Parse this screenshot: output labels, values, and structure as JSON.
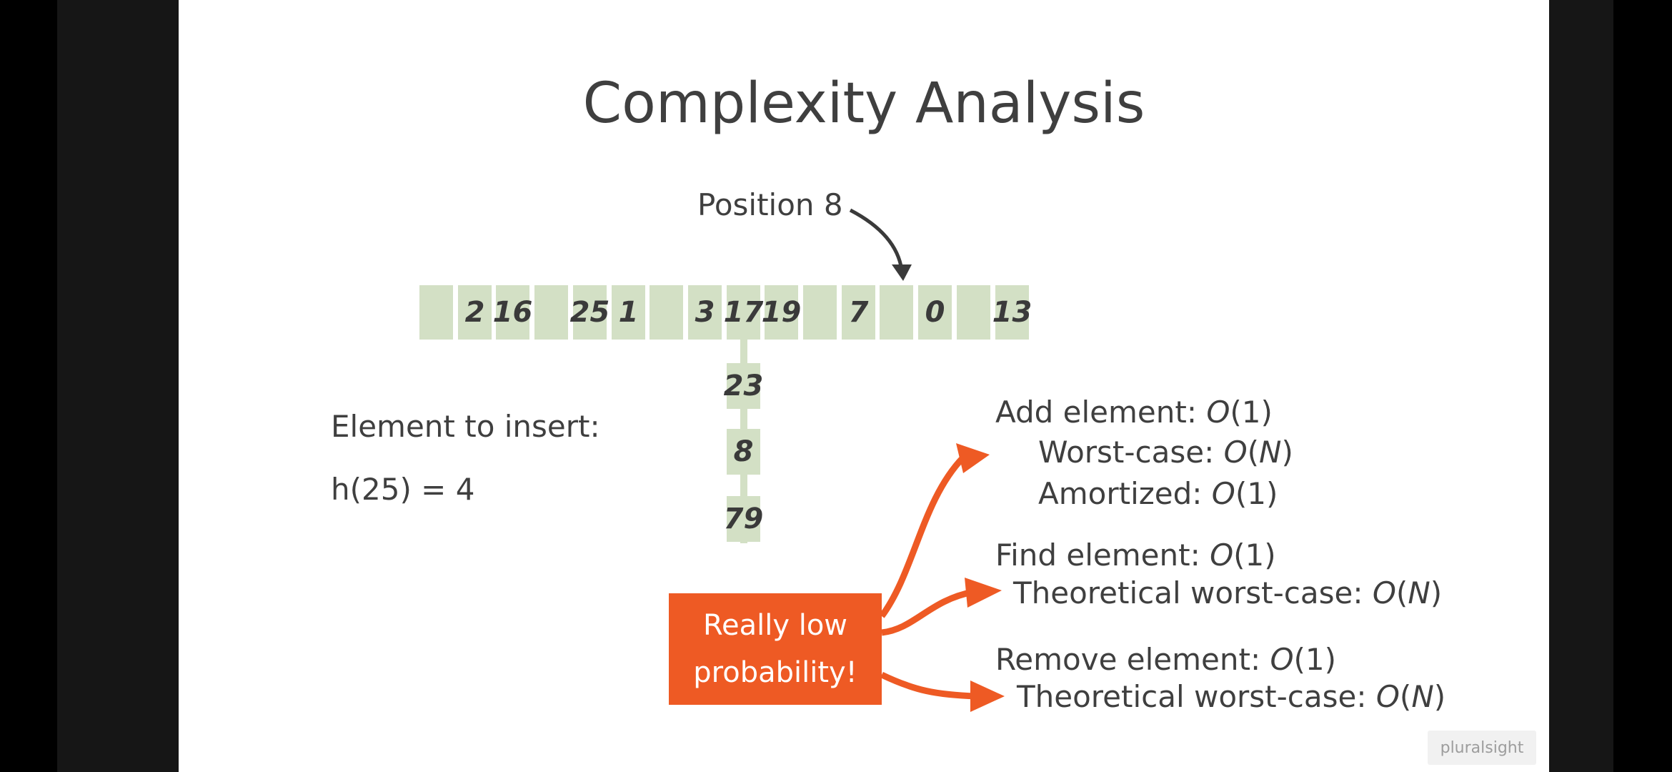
{
  "slide": {
    "title": "Complexity Analysis",
    "position_label": "Position 8",
    "array_cells": [
      "",
      "2",
      "16",
      "",
      "25",
      "1",
      "",
      "3",
      "17",
      "19",
      "",
      "7",
      "",
      "0",
      "",
      "13"
    ],
    "chain": [
      "23",
      "8",
      "79"
    ],
    "insert_label": "Element to insert:",
    "hash_expr": "h(25) = 4",
    "callout": {
      "line1": "Really low",
      "line2": "probability!"
    },
    "add": {
      "label": "Add element: ",
      "value": "O",
      "value_rest": "(1)"
    },
    "add_worst": {
      "label": "Worst-case: ",
      "value": "O",
      "n": "N",
      "close": ")",
      "open": "("
    },
    "add_amortized": {
      "label": "Amortized: ",
      "value": "O",
      "value_rest": "(1)"
    },
    "find": {
      "label": "Find element: ",
      "value": "O",
      "value_rest": "(1)"
    },
    "find_worst": {
      "label": "Theoretical worst-case: ",
      "value": "O",
      "n": "N",
      "open": "(",
      "close": ")"
    },
    "remove": {
      "label": "Remove element: ",
      "value": "O",
      "value_rest": "(1)"
    },
    "remove_worst": {
      "label": "Theoretical worst-case: ",
      "value": "O",
      "n": "N",
      "open": "(",
      "close": ")"
    },
    "logo": "pluralsight",
    "colors": {
      "cell": "#d3e0c5",
      "accent": "#ee5a24",
      "text": "#3f3f3f"
    }
  }
}
